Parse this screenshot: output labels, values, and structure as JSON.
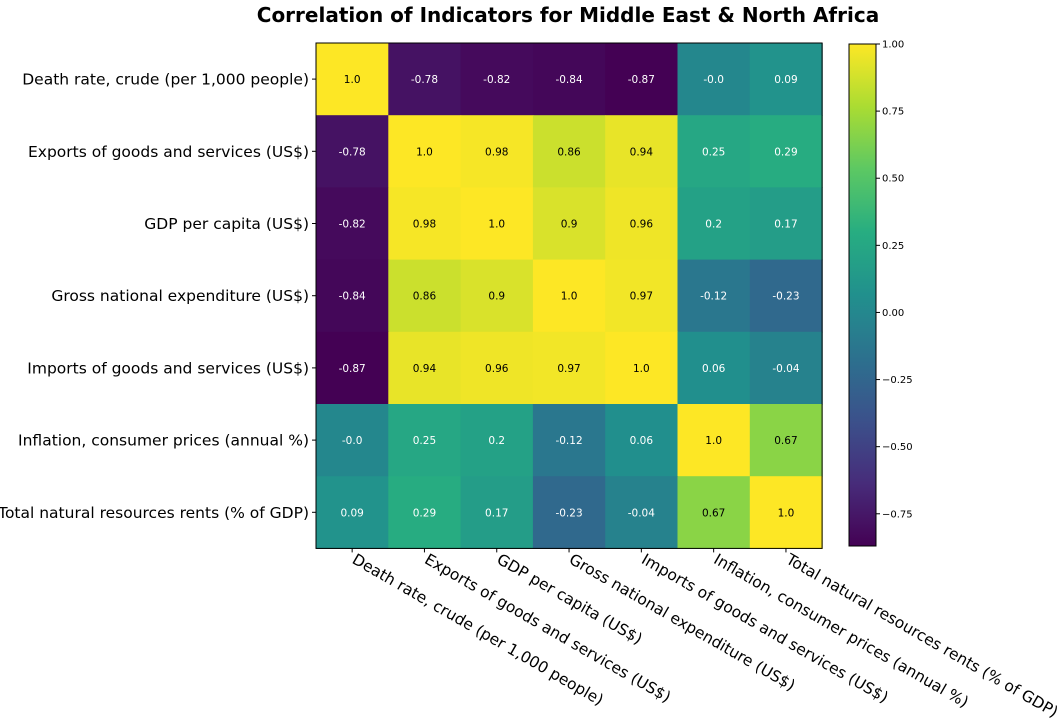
{
  "chart_data": {
    "type": "heatmap",
    "title": "Correlation of Indicators for Middle East & North Africa",
    "variables": [
      "Death rate, crude (per 1,000 people)",
      "Exports of goods and services (US$)",
      "GDP per capita (US$)",
      "Gross national expenditure (US$)",
      "Imports of goods and services (US$)",
      "Inflation, consumer prices (annual %)",
      "Total natural resources rents (% of GDP)"
    ],
    "matrix": [
      [
        1.0,
        -0.78,
        -0.82,
        -0.84,
        -0.87,
        -0.0,
        0.09
      ],
      [
        -0.78,
        1.0,
        0.98,
        0.86,
        0.94,
        0.25,
        0.29
      ],
      [
        -0.82,
        0.98,
        1.0,
        0.9,
        0.96,
        0.2,
        0.17
      ],
      [
        -0.84,
        0.86,
        0.9,
        1.0,
        0.97,
        -0.12,
        -0.23
      ],
      [
        -0.87,
        0.94,
        0.96,
        0.97,
        1.0,
        0.06,
        -0.04
      ],
      [
        -0.0,
        0.25,
        0.2,
        -0.12,
        0.06,
        1.0,
        0.67
      ],
      [
        0.09,
        0.29,
        0.17,
        -0.23,
        -0.04,
        0.67,
        1.0
      ]
    ],
    "cell_labels": [
      [
        "1.0",
        "-0.78",
        "-0.82",
        "-0.84",
        "-0.87",
        "-0.0",
        "0.09"
      ],
      [
        "-0.78",
        "1.0",
        "0.98",
        "0.86",
        "0.94",
        "0.25",
        "0.29"
      ],
      [
        "-0.82",
        "0.98",
        "1.0",
        "0.9",
        "0.96",
        "0.2",
        "0.17"
      ],
      [
        "-0.84",
        "0.86",
        "0.9",
        "1.0",
        "0.97",
        "-0.12",
        "-0.23"
      ],
      [
        "-0.87",
        "0.94",
        "0.96",
        "0.97",
        "1.0",
        "0.06",
        "-0.04"
      ],
      [
        "-0.0",
        "0.25",
        "0.2",
        "-0.12",
        "0.06",
        "1.0",
        "0.67"
      ],
      [
        "0.09",
        "0.29",
        "0.17",
        "-0.23",
        "-0.04",
        "0.67",
        "1.0"
      ]
    ],
    "colormap": "viridis",
    "colorbar": {
      "range": [
        -0.87,
        1.0
      ],
      "ticks": [
        1.0,
        0.75,
        0.5,
        0.25,
        0.0,
        -0.25,
        -0.5,
        -0.75
      ],
      "tick_labels": [
        "1.00",
        "0.75",
        "0.50",
        "0.25",
        "0.00",
        "−0.25",
        "−0.50",
        "−0.75"
      ],
      "placement": "right"
    },
    "text_color_rule": "black on values above 0.5, white otherwise",
    "x_tick_rotation_degrees": -30,
    "xlabel": "",
    "ylabel": "",
    "grid": false
  }
}
